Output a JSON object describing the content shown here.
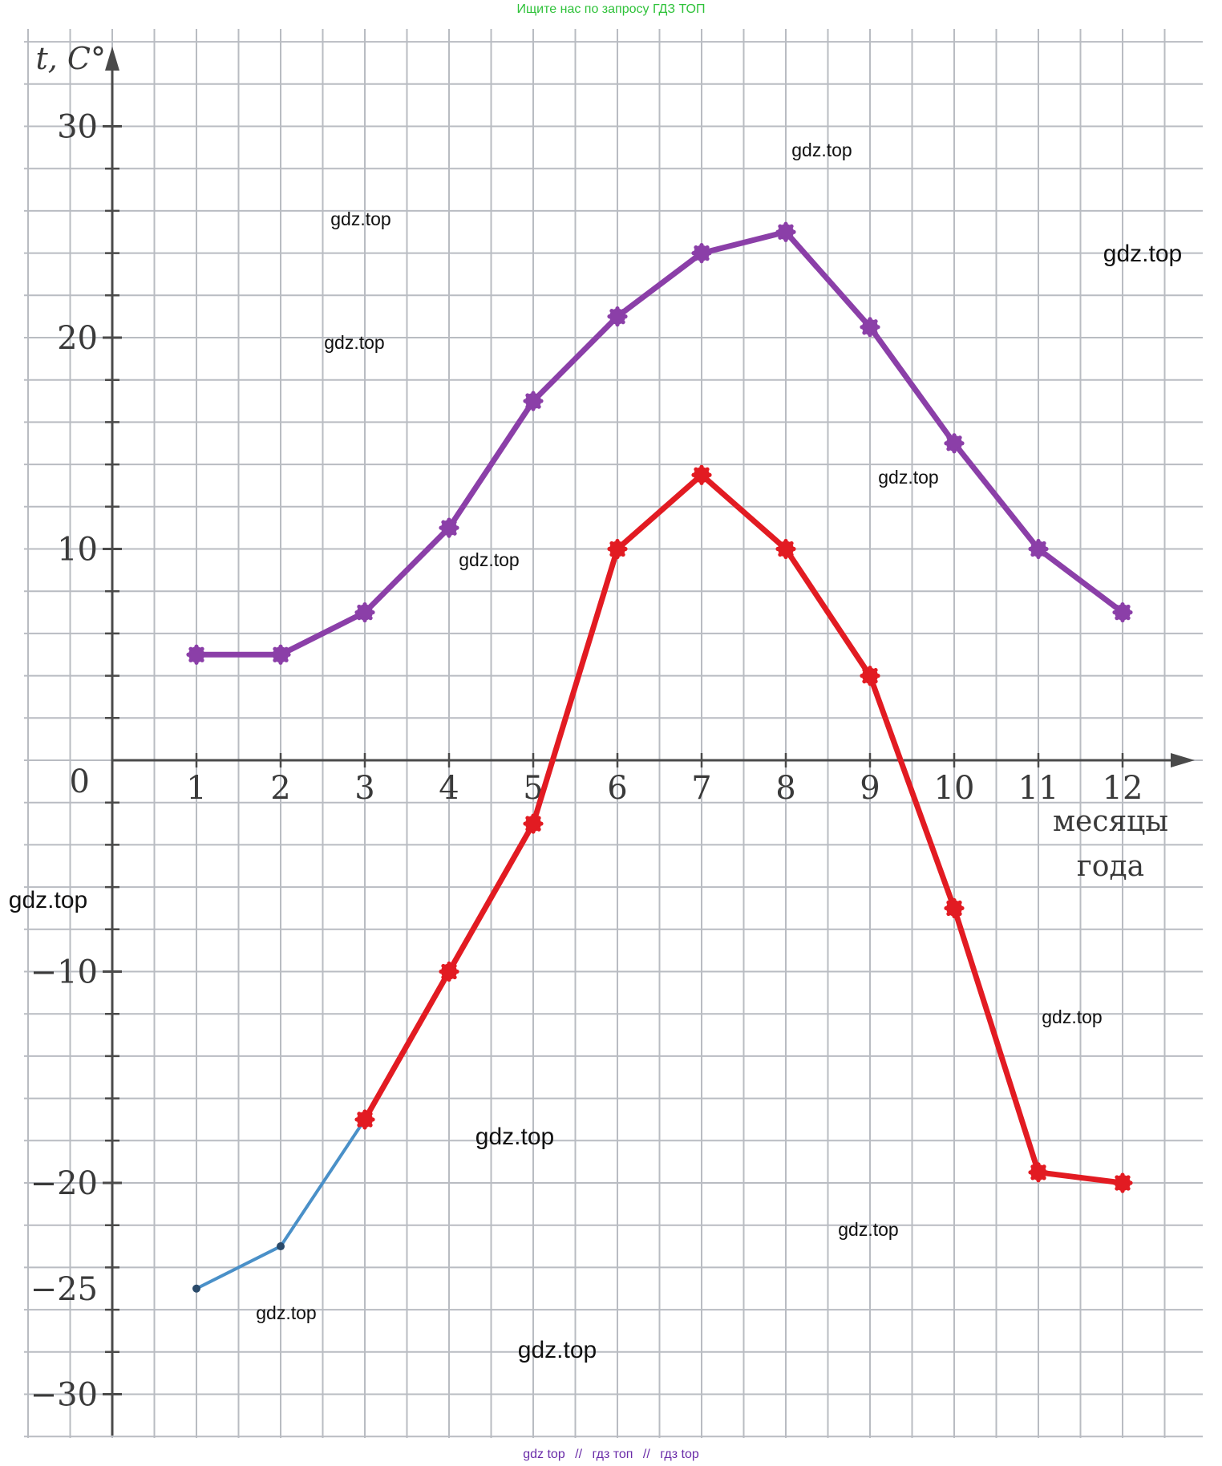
{
  "header": {
    "banner_text": "Ищите нас по запросу ГДЗ ТОП"
  },
  "footer": {
    "links": [
      "gdz top",
      "гдз топ",
      "гдз top"
    ],
    "separator": "//"
  },
  "watermarks": [
    {
      "text": "gdz.top",
      "size": "medium"
    },
    {
      "text": "gdz.top",
      "size": "medium"
    },
    {
      "text": "gdz.top",
      "size": "large"
    },
    {
      "text": "gdz.top",
      "size": "medium"
    },
    {
      "text": "gdz.top",
      "size": "medium"
    },
    {
      "text": "gdz.top",
      "size": "medium"
    },
    {
      "text": "gdz.top",
      "size": "large"
    },
    {
      "text": "gdz.top",
      "size": "medium"
    },
    {
      "text": "gdz.top",
      "size": "large"
    },
    {
      "text": "gdz.top",
      "size": "medium"
    },
    {
      "text": "gdz.top",
      "size": "medium"
    },
    {
      "text": "gdz.top",
      "size": "large"
    }
  ],
  "colors": {
    "grid": "#b9bcc2",
    "axis": "#4a4a4a",
    "series_upper": "#8b3fa8",
    "series_lower": "#e21b22",
    "series_lower_start": "#4a90c8"
  },
  "chart_data": {
    "type": "line",
    "title": "",
    "xlabel": "месяцы года",
    "ylabel": "t, С°",
    "xlabel_lines": [
      "месяцы",
      "года"
    ],
    "origin_label": "0",
    "categories": [
      1,
      2,
      3,
      4,
      5,
      6,
      7,
      8,
      9,
      10,
      11,
      12
    ],
    "x_tick_labels": [
      "1",
      "2",
      "3",
      "4",
      "5",
      "6",
      "7",
      "8",
      "9",
      "10",
      "11",
      "12"
    ],
    "y_tick_labels": [
      {
        "value": 30,
        "label": "30"
      },
      {
        "value": 20,
        "label": "20"
      },
      {
        "value": 10,
        "label": "10"
      },
      {
        "value": -10,
        "label": "−10"
      },
      {
        "value": -20,
        "label": "−20"
      },
      {
        "value": -25,
        "label": "−25"
      },
      {
        "value": -30,
        "label": "−30"
      }
    ],
    "xlim": [
      0,
      13
    ],
    "ylim": [
      -32,
      34
    ],
    "grid": true,
    "series": [
      {
        "name": "upper",
        "color": "#8b3fa8",
        "values": [
          5,
          5,
          7,
          11,
          17,
          21,
          24,
          25,
          20.5,
          15,
          10,
          7
        ]
      },
      {
        "name": "lower",
        "color": "#e21b22",
        "start_color": "#4a90c8",
        "start_segment_until_index": 2,
        "values": [
          -25,
          -23,
          -17,
          -10,
          -3,
          10,
          13.5,
          10,
          4,
          -7,
          -19.5,
          -20
        ]
      }
    ]
  }
}
